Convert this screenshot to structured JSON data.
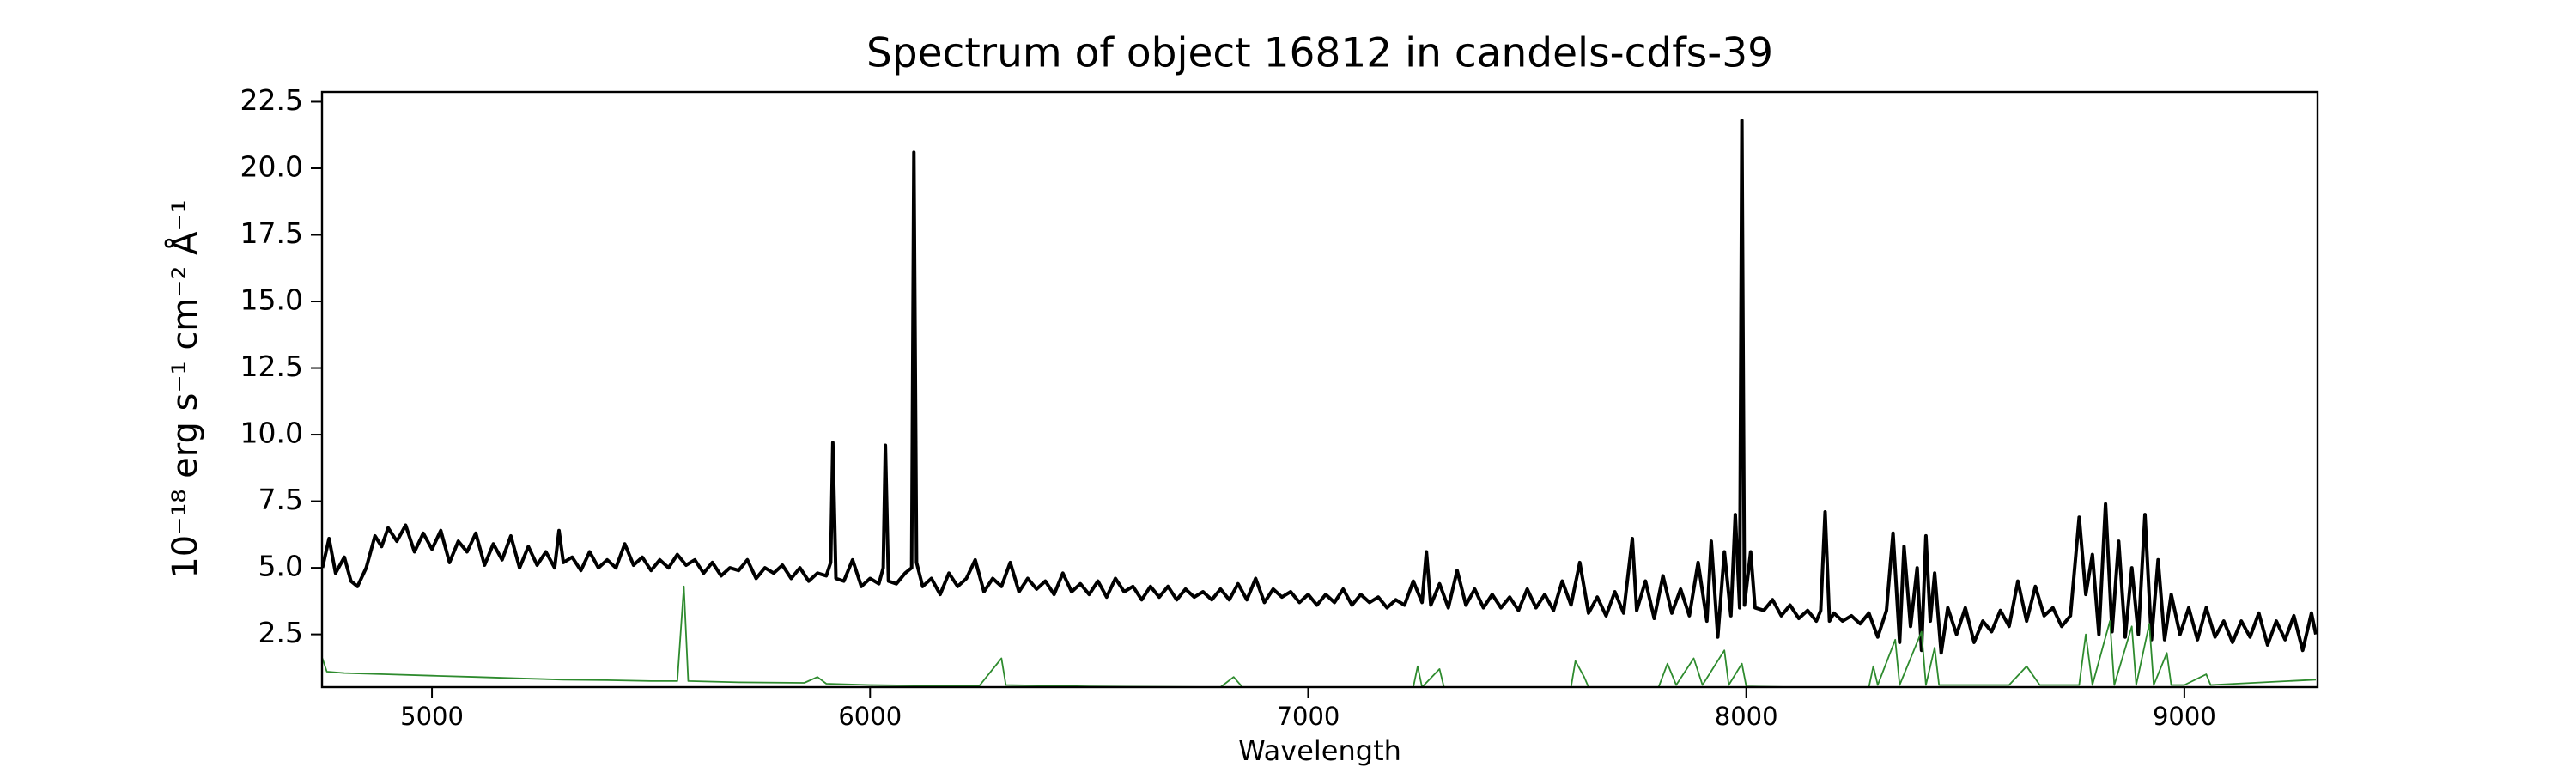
{
  "chart_data": {
    "type": "line",
    "title": "Spectrum of object 16812 in candels-cdfs-39",
    "xlabel": "Wavelength",
    "ylabel": "10⁻¹⁸ erg s⁻¹ cm⁻² Å⁻¹",
    "xlim": [
      4749,
      9304
    ],
    "ylim": [
      0.52,
      22.87
    ],
    "xticks": [
      5000,
      6000,
      7000,
      8000,
      9000
    ],
    "yticks": [
      2.5,
      5.0,
      7.5,
      10.0,
      12.5,
      15.0,
      17.5,
      20.0,
      22.5
    ],
    "series": [
      {
        "color": "#000000",
        "width": 4,
        "x": [
          4750,
          4765,
          4780,
          4800,
          4815,
          4830,
          4850,
          4870,
          4885,
          4900,
          4920,
          4940,
          4960,
          4980,
          5000,
          5020,
          5040,
          5060,
          5080,
          5100,
          5120,
          5140,
          5160,
          5180,
          5200,
          5220,
          5240,
          5260,
          5280,
          5290,
          5300,
          5320,
          5340,
          5360,
          5380,
          5400,
          5420,
          5440,
          5460,
          5480,
          5500,
          5520,
          5540,
          5560,
          5580,
          5600,
          5620,
          5640,
          5660,
          5680,
          5700,
          5720,
          5740,
          5760,
          5780,
          5800,
          5820,
          5840,
          5860,
          5880,
          5900,
          5910,
          5915,
          5922,
          5940,
          5960,
          5980,
          6000,
          6020,
          6030,
          6035,
          6042,
          6060,
          6080,
          6095,
          6100,
          6106,
          6120,
          6140,
          6160,
          6180,
          6200,
          6220,
          6240,
          6260,
          6280,
          6300,
          6320,
          6340,
          6360,
          6380,
          6400,
          6420,
          6440,
          6460,
          6480,
          6500,
          6520,
          6540,
          6560,
          6580,
          6600,
          6620,
          6640,
          6660,
          6680,
          6700,
          6720,
          6740,
          6760,
          6780,
          6800,
          6820,
          6840,
          6860,
          6880,
          6900,
          6920,
          6940,
          6960,
          6980,
          7000,
          7020,
          7040,
          7060,
          7080,
          7100,
          7120,
          7140,
          7160,
          7180,
          7200,
          7220,
          7240,
          7260,
          7270,
          7280,
          7300,
          7320,
          7340,
          7360,
          7380,
          7400,
          7420,
          7440,
          7460,
          7480,
          7500,
          7520,
          7540,
          7560,
          7580,
          7600,
          7620,
          7640,
          7660,
          7680,
          7700,
          7720,
          7740,
          7750,
          7770,
          7790,
          7810,
          7830,
          7850,
          7870,
          7890,
          7910,
          7920,
          7935,
          7950,
          7965,
          7975,
          7985,
          7990,
          7996,
          8010,
          8020,
          8040,
          8060,
          8080,
          8100,
          8120,
          8140,
          8160,
          8170,
          8180,
          8190,
          8200,
          8220,
          8240,
          8260,
          8280,
          8300,
          8320,
          8335,
          8350,
          8360,
          8375,
          8390,
          8400,
          8410,
          8420,
          8430,
          8445,
          8460,
          8480,
          8500,
          8520,
          8540,
          8560,
          8580,
          8600,
          8620,
          8640,
          8660,
          8680,
          8700,
          8720,
          8740,
          8760,
          8775,
          8790,
          8805,
          8820,
          8835,
          8850,
          8865,
          8880,
          8895,
          8910,
          8925,
          8940,
          8955,
          8970,
          8990,
          9010,
          9030,
          9050,
          9070,
          9090,
          9110,
          9130,
          9150,
          9170,
          9190,
          9210,
          9230,
          9250,
          9270,
          9290,
          9300
        ],
        "values": [
          5.0,
          6.1,
          4.8,
          5.4,
          4.5,
          4.3,
          5.0,
          6.2,
          5.8,
          6.5,
          6.0,
          6.6,
          5.6,
          6.3,
          5.7,
          6.4,
          5.2,
          6.0,
          5.6,
          6.3,
          5.1,
          5.9,
          5.3,
          6.2,
          5.0,
          5.8,
          5.1,
          5.6,
          5.0,
          6.4,
          5.2,
          5.4,
          4.9,
          5.6,
          5.0,
          5.3,
          5.0,
          5.9,
          5.1,
          5.4,
          4.9,
          5.3,
          5.0,
          5.5,
          5.1,
          5.3,
          4.8,
          5.2,
          4.7,
          5.0,
          4.9,
          5.3,
          4.6,
          5.0,
          4.8,
          5.1,
          4.6,
          5.0,
          4.5,
          4.8,
          4.7,
          5.2,
          9.7,
          4.6,
          4.5,
          5.3,
          4.3,
          4.6,
          4.4,
          5.0,
          9.6,
          4.5,
          4.4,
          4.8,
          5.0,
          20.6,
          5.2,
          4.3,
          4.6,
          4.0,
          4.8,
          4.3,
          4.6,
          5.3,
          4.1,
          4.6,
          4.3,
          5.2,
          4.1,
          4.6,
          4.2,
          4.5,
          4.0,
          4.8,
          4.1,
          4.4,
          4.0,
          4.5,
          3.9,
          4.6,
          4.1,
          4.3,
          3.8,
          4.3,
          3.9,
          4.3,
          3.8,
          4.2,
          3.9,
          4.1,
          3.8,
          4.2,
          3.8,
          4.4,
          3.8,
          4.6,
          3.7,
          4.2,
          3.9,
          4.1,
          3.7,
          4.0,
          3.6,
          4.0,
          3.7,
          4.2,
          3.6,
          4.0,
          3.7,
          3.9,
          3.5,
          3.8,
          3.6,
          4.5,
          3.7,
          5.6,
          3.6,
          4.4,
          3.5,
          4.9,
          3.6,
          4.2,
          3.5,
          4.0,
          3.5,
          3.9,
          3.4,
          4.2,
          3.5,
          4.0,
          3.4,
          4.5,
          3.6,
          5.2,
          3.3,
          3.9,
          3.2,
          4.1,
          3.3,
          6.1,
          3.4,
          4.5,
          3.1,
          4.7,
          3.3,
          4.2,
          3.2,
          5.2,
          3.0,
          6.0,
          2.4,
          5.6,
          3.2,
          7.0,
          3.5,
          21.8,
          3.6,
          5.6,
          3.5,
          3.4,
          3.8,
          3.2,
          3.6,
          3.1,
          3.4,
          3.0,
          3.4,
          7.1,
          3.0,
          3.3,
          3.0,
          3.2,
          2.9,
          3.3,
          2.4,
          3.4,
          6.3,
          2.2,
          5.8,
          2.8,
          5.0,
          1.9,
          6.2,
          3.0,
          4.8,
          1.8,
          3.5,
          2.5,
          3.5,
          2.2,
          3.0,
          2.6,
          3.4,
          2.8,
          4.5,
          3.0,
          4.3,
          3.2,
          3.5,
          2.8,
          3.2,
          6.9,
          4.0,
          5.5,
          2.5,
          7.4,
          2.6,
          6.0,
          2.4,
          5.0,
          2.5,
          7.0,
          2.3,
          5.3,
          2.3,
          4.0,
          2.5,
          3.5,
          2.3,
          3.5,
          2.4,
          3.0,
          2.2,
          3.0,
          2.4,
          3.3,
          2.1,
          3.0,
          2.3,
          3.2,
          1.9,
          3.3,
          2.5
        ]
      },
      {
        "color": "#2e8b2e",
        "width": 1.8,
        "x": [
          4750,
          4760,
          4800,
          4900,
          5000,
          5100,
          5200,
          5300,
          5400,
          5500,
          5560,
          5575,
          5585,
          5700,
          5850,
          5880,
          5900,
          6000,
          6100,
          6250,
          6300,
          6310,
          6500,
          6800,
          6830,
          6850,
          7000,
          7240,
          7250,
          7260,
          7300,
          7310,
          7600,
          7610,
          7630,
          7640,
          7800,
          7820,
          7840,
          7880,
          7900,
          7950,
          7960,
          7990,
          8000,
          8100,
          8280,
          8290,
          8300,
          8340,
          8350,
          8400,
          8410,
          8430,
          8440,
          8600,
          8640,
          8670,
          8760,
          8775,
          8790,
          8830,
          8840,
          8880,
          8890,
          8920,
          8930,
          8960,
          8970,
          9000,
          9050,
          9060,
          9300
        ],
        "values": [
          1.6,
          1.1,
          1.05,
          1.0,
          0.95,
          0.9,
          0.85,
          0.8,
          0.78,
          0.75,
          0.75,
          4.3,
          0.75,
          0.7,
          0.68,
          0.9,
          0.65,
          0.6,
          0.58,
          0.58,
          1.6,
          0.6,
          0.55,
          0.52,
          0.9,
          0.52,
          0.52,
          0.52,
          1.3,
          0.52,
          1.2,
          0.52,
          0.52,
          1.5,
          0.9,
          0.52,
          0.52,
          1.4,
          0.6,
          1.6,
          0.6,
          1.9,
          0.6,
          1.4,
          0.55,
          0.52,
          0.52,
          1.3,
          0.6,
          2.3,
          0.6,
          2.6,
          0.6,
          2.0,
          0.6,
          0.6,
          1.3,
          0.6,
          0.6,
          2.5,
          0.6,
          3.0,
          0.6,
          2.8,
          0.6,
          2.9,
          0.6,
          1.8,
          0.6,
          0.6,
          1.0,
          0.6,
          0.8
        ]
      }
    ]
  }
}
